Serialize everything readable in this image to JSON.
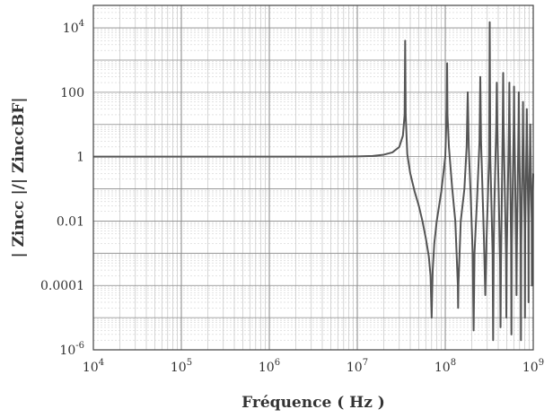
{
  "chart_data": {
    "type": "line",
    "title": "",
    "xlabel": "Fréquence ( Hz )",
    "ylabel": "| Zincc |/| ZinccBF|",
    "x_scale": "log",
    "y_scale": "log",
    "xlim": [
      10000,
      1000000000
    ],
    "ylim": [
      1e-06,
      50000
    ],
    "grid": true,
    "legend": "none",
    "x_ticks": [
      {
        "value": 10000,
        "base": "10",
        "exp": "4"
      },
      {
        "value": 100000,
        "base": "10",
        "exp": "5"
      },
      {
        "value": 1000000,
        "base": "10",
        "exp": "6"
      },
      {
        "value": 10000000,
        "base": "10",
        "exp": "7"
      },
      {
        "value": 100000000,
        "base": "10",
        "exp": "8"
      },
      {
        "value": 1000000000,
        "base": "10",
        "exp": "9"
      }
    ],
    "y_ticks": [
      {
        "value": 10000,
        "base": "10",
        "exp": "4"
      },
      {
        "value": 100,
        "label": "100"
      },
      {
        "value": 1,
        "label": "1"
      },
      {
        "value": 0.01,
        "label": "0.01"
      },
      {
        "value": 0.0001,
        "label": "0.0001"
      },
      {
        "value": 1e-06,
        "base": "10",
        "exp": "-6"
      }
    ],
    "series": [
      {
        "color": "#555555",
        "x": [
          10000,
          1000000,
          5000000,
          10000000,
          15000000,
          20000000,
          25000000,
          30000000,
          33000000,
          34500000,
          35000000,
          35500000,
          37000000,
          40000000,
          45000000,
          50000000,
          55000000,
          60000000,
          65000000,
          68000000,
          70000000,
          72000000,
          75000000,
          80000000,
          90000000,
          100000000,
          104000000,
          105000000,
          106000000,
          110000000,
          120000000,
          130000000,
          139000000,
          140000000,
          141000000,
          150000000,
          165000000,
          175000000,
          180000000,
          185000000,
          195000000,
          205000000,
          210000000,
          215000000,
          230000000,
          245000000,
          250000000,
          255000000,
          275000000,
          285000000,
          295000000,
          315000000,
          320000000,
          325000000,
          345000000,
          350000000,
          355000000,
          360000000,
          380000000,
          385000000,
          390000000,
          420000000,
          425000000,
          430000000,
          450000000,
          455000000,
          460000000,
          490000000,
          495000000,
          500000000,
          530000000,
          535000000,
          540000000,
          560000000,
          565000000,
          570000000,
          600000000,
          605000000,
          610000000,
          640000000,
          645000000,
          650000000,
          680000000,
          685000000,
          690000000,
          720000000,
          725000000,
          730000000,
          760000000,
          765000000,
          770000000,
          800000000,
          805000000,
          810000000,
          840000000,
          845000000,
          850000000,
          880000000,
          885000000,
          890000000,
          920000000,
          925000000,
          930000000,
          960000000,
          965000000,
          970000000,
          1000000000
        ],
        "y": [
          1,
          1,
          1,
          1.02,
          1.05,
          1.15,
          1.35,
          2,
          4.5,
          20,
          4000,
          20,
          1.2,
          0.3,
          0.08,
          0.03,
          0.01,
          0.003,
          0.0008,
          0.0002,
          1e-05,
          0.0003,
          0.002,
          0.01,
          0.08,
          1,
          30,
          800,
          20,
          2,
          0.1,
          0.01,
          0.0001,
          2e-05,
          0.0001,
          0.01,
          0.1,
          2,
          100,
          2,
          0.05,
          0.001,
          4e-06,
          0.001,
          0.05,
          3,
          300,
          3,
          0.003,
          5e-05,
          0.003,
          1,
          15000,
          1,
          0.001,
          2e-06,
          0.001,
          0.02,
          10,
          200,
          10,
          0.0005,
          5e-06,
          0.0005,
          10,
          400,
          10,
          0.001,
          1e-05,
          0.001,
          10,
          200,
          10,
          0.002,
          3e-06,
          0.002,
          10,
          150,
          10,
          0.001,
          5e-05,
          0.001,
          10,
          100,
          10,
          0.002,
          2e-06,
          0.002,
          5,
          50,
          5,
          0.005,
          1e-05,
          0.005,
          5,
          30,
          5,
          0.01,
          3e-05,
          0.01,
          2,
          10,
          2,
          0.01,
          0.0001,
          0.01,
          0.3
        ]
      }
    ]
  }
}
